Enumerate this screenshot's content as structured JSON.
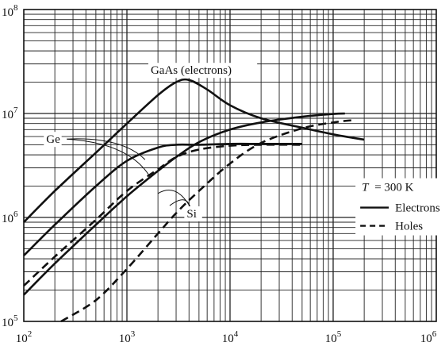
{
  "chart_data": {
    "type": "line",
    "xscale": "log",
    "yscale": "log",
    "xlim": [
      100,
      1000000
    ],
    "ylim": [
      100000,
      100000000
    ],
    "grid": true,
    "x_ticks": [
      {
        "base": "10",
        "exp": "2"
      },
      {
        "base": "10",
        "exp": "3"
      },
      {
        "base": "10",
        "exp": "4"
      },
      {
        "base": "10",
        "exp": "5"
      },
      {
        "base": "10",
        "exp": "6"
      }
    ],
    "y_ticks": [
      {
        "base": "10",
        "exp": "5"
      },
      {
        "base": "10",
        "exp": "6"
      },
      {
        "base": "10",
        "exp": "7"
      },
      {
        "base": "10",
        "exp": "8"
      }
    ],
    "series": [
      {
        "name": "GaAs (electrons)",
        "carrier": "electrons",
        "x": [
          100,
          200,
          500,
          1000,
          2000,
          3000,
          4000,
          6000,
          10000,
          20000,
          50000,
          100000,
          200000
        ],
        "y": [
          900000,
          1800000,
          4200000,
          8000000,
          15000000,
          20000000,
          21000000,
          17000000,
          12000000,
          9000000,
          7300000,
          6300000,
          5600000
        ]
      },
      {
        "name": "Ge",
        "carrier": "electrons",
        "x": [
          100,
          200,
          500,
          1000,
          2000,
          3000,
          5000,
          10000,
          20000,
          50000
        ],
        "y": [
          430000,
          850000,
          2000000,
          3500000,
          4700000,
          5000000,
          5000000,
          5100000,
          5100000,
          5100000
        ]
      },
      {
        "name": "Ge",
        "carrier": "holes",
        "x": [
          100,
          200,
          500,
          1000,
          2000,
          3000,
          5000,
          10000,
          20000,
          50000
        ],
        "y": [
          220000,
          420000,
          950000,
          1800000,
          2900000,
          3800000,
          4500000,
          4900000,
          5000000,
          5000000
        ]
      },
      {
        "name": "Si",
        "carrier": "electrons",
        "x": [
          100,
          200,
          500,
          1000,
          2000,
          3000,
          5000,
          10000,
          20000,
          50000,
          100000,
          130000
        ],
        "y": [
          180000,
          360000,
          850000,
          1600000,
          2800000,
          3800000,
          5300000,
          7000000,
          8200000,
          9300000,
          9900000,
          10000000
        ]
      },
      {
        "name": "Si",
        "carrier": "holes",
        "x": [
          230,
          500,
          1000,
          2000,
          3000,
          5000,
          10000,
          20000,
          50000,
          100000,
          150000
        ],
        "y": [
          100000,
          160000,
          320000,
          700000,
          1100000,
          1800000,
          3300000,
          5200000,
          7200000,
          8200000,
          8600000
        ]
      }
    ],
    "annotations": [
      {
        "text": "GaAs (electrons)",
        "x": 1700,
        "y": 24000000
      },
      {
        "text": "Ge",
        "x": 165,
        "y": 5200000
      },
      {
        "text": "Si",
        "x": 3800,
        "y": 1000000
      }
    ],
    "legend": {
      "placement": "right",
      "title_var": "T",
      "title_rest": "= 300 K",
      "entries": [
        {
          "label": "Electrons",
          "style": "solid"
        },
        {
          "label": "Holes",
          "style": "dashed"
        }
      ]
    }
  }
}
